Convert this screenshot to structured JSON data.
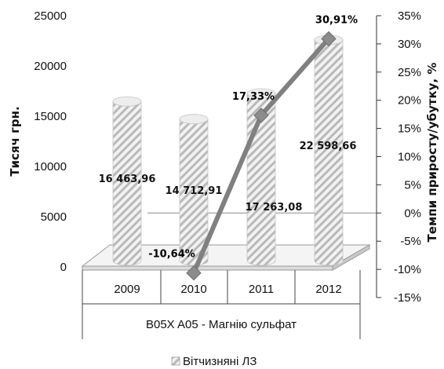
{
  "chart_data": {
    "type": "bar",
    "categories": [
      "2009",
      "2010",
      "2011",
      "2012"
    ],
    "group_label": "B05X A05 - Магнію сульфат",
    "ylabel": "Тисяч грн.",
    "y2label": "Темпи приросту/убутку, %",
    "ylim": [
      0,
      25000
    ],
    "y2lim": [
      -15,
      35
    ],
    "yticks": [
      "0",
      "5000",
      "10000",
      "15000",
      "20000",
      "25000"
    ],
    "y2ticks": [
      "-15%",
      "-10%",
      "-5%",
      "0%",
      "5%",
      "10%",
      "15%",
      "20%",
      "25%",
      "30%",
      "35%"
    ],
    "series": [
      {
        "name": "Вітчизняні ЛЗ",
        "kind": "bar",
        "values": [
          16463.96,
          14712.91,
          17263.08,
          22598.66
        ],
        "labels": [
          "16 463,96",
          "14 712,91",
          "17 263,08",
          "22 598,66"
        ]
      },
      {
        "kind": "line",
        "axis": "secondary",
        "values": [
          null,
          -10.64,
          17.33,
          30.91
        ],
        "labels": [
          "",
          "-10,64%",
          "17,33%",
          "30,91%"
        ]
      }
    ],
    "legend": "bottom",
    "colors": {
      "bar": "#d9d9d9",
      "bar_hatch": "#b4b4b4",
      "line": "#808080",
      "marker": "#8c8c8c"
    }
  }
}
